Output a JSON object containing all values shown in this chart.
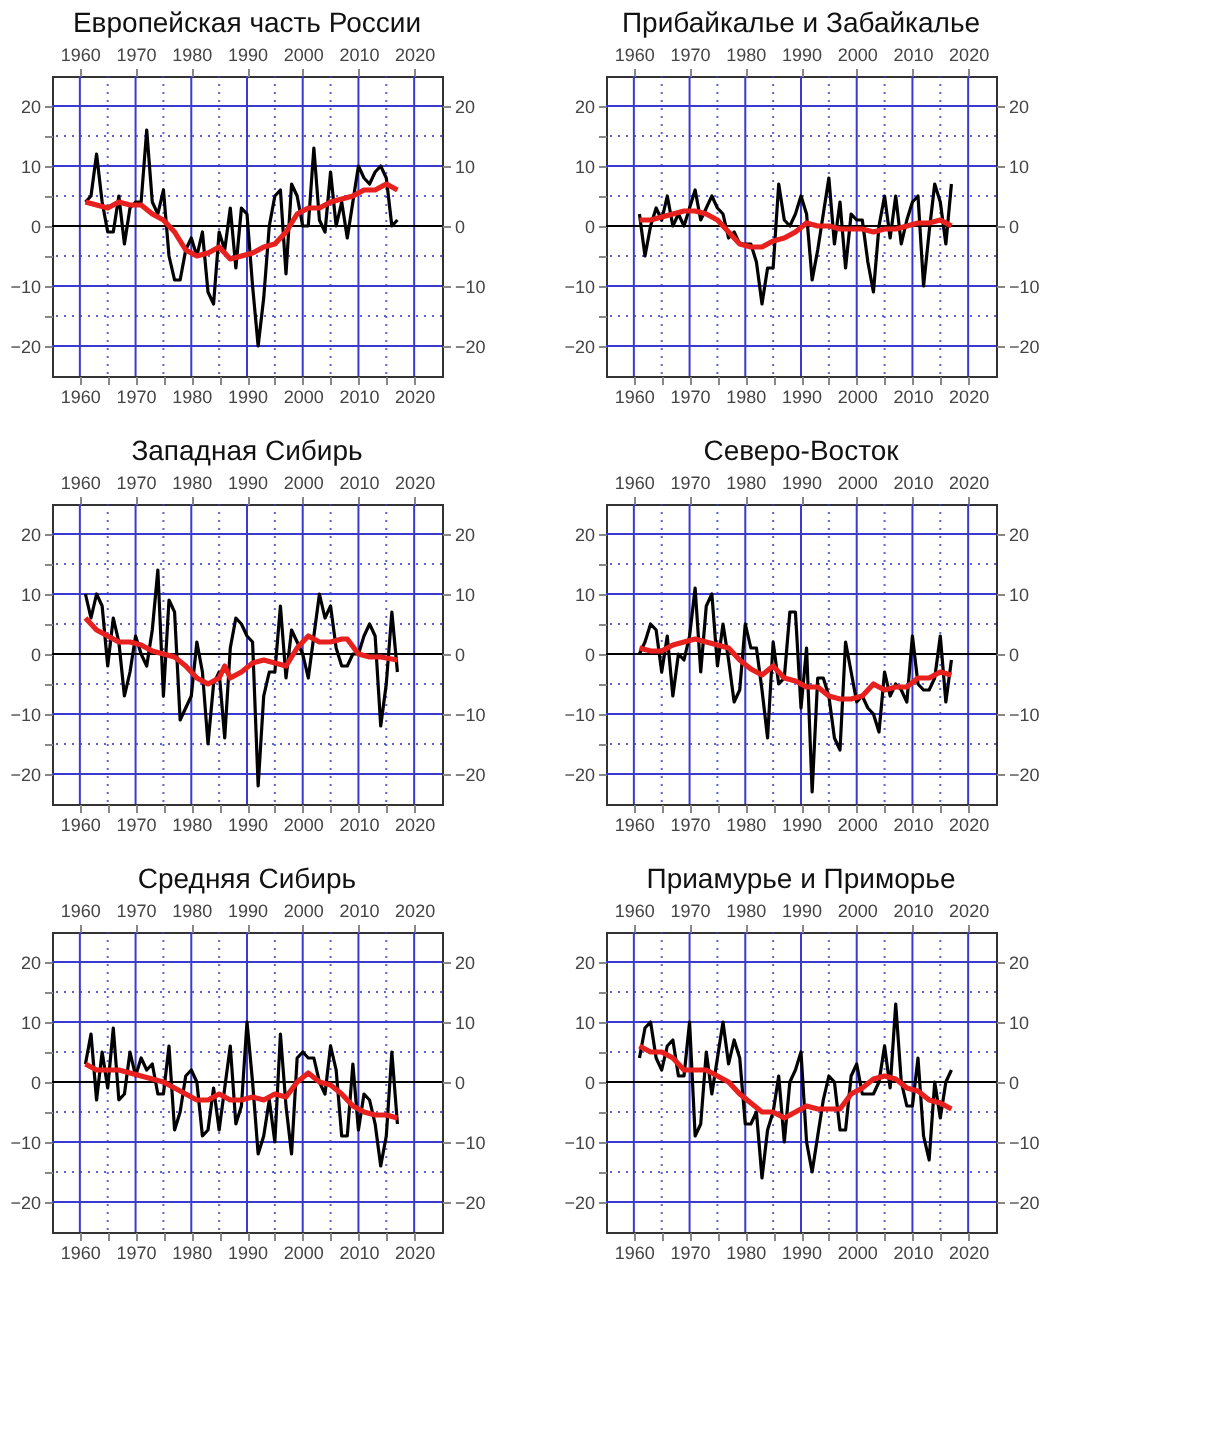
{
  "chart_data": [
    {
      "type": "line",
      "title": "Европейская часть России",
      "xlim": [
        1955,
        2025
      ],
      "xticks": [
        1960,
        {
          "value": 1965,
          "label": null
        },
        1970,
        {
          "value": 1975,
          "label": null
        },
        1980,
        {
          "value": 1985,
          "label": null
        },
        1990,
        {
          "value": 1995,
          "label": null
        },
        2000,
        {
          "value": 2005,
          "label": null
        },
        2010,
        {
          "value": 2015,
          "label": null
        },
        2020
      ],
      "x2lim": [
        1955,
        2025
      ],
      "x2ticks": [
        1960,
        1970,
        1980,
        1990,
        2000,
        2010,
        2020
      ],
      "ylim": [
        -25,
        25
      ],
      "yticks": [
        -20,
        {
          "value": -15,
          "label": null
        },
        -10,
        {
          "value": -5,
          "label": null
        },
        0,
        {
          "value": 5,
          "label": null
        },
        10,
        {
          "value": 15,
          "label": null
        },
        20
      ],
      "y2lim": [
        -25,
        25
      ],
      "y2ticks": [
        -20,
        -10,
        0,
        10,
        20
      ],
      "grid": true,
      "ref_lines": [
        {
          "axis": "y",
          "value": 0,
          "color": "#000000"
        }
      ],
      "x": [
        1961,
        1962,
        1963,
        1964,
        1965,
        1966,
        1967,
        1968,
        1969,
        1970,
        1971,
        1972,
        1973,
        1974,
        1975,
        1976,
        1977,
        1978,
        1979,
        1980,
        1981,
        1982,
        1983,
        1984,
        1985,
        1986,
        1987,
        1988,
        1989,
        1990,
        1991,
        1992,
        1993,
        1994,
        1995,
        1996,
        1997,
        1998,
        1999,
        2000,
        2001,
        2002,
        2003,
        2004,
        2005,
        2006,
        2007,
        2008,
        2009,
        2010,
        2011,
        2012,
        2013,
        2014,
        2015,
        2016,
        2017
      ],
      "series": [
        {
          "color": "#000000",
          "values": [
            4,
            5,
            12,
            4,
            -1,
            -1,
            5,
            -3,
            3,
            4,
            4,
            16,
            4,
            2,
            6,
            -5,
            -9,
            -9,
            -4,
            -2,
            -5,
            -1,
            -11,
            -13,
            -1,
            -4,
            3,
            -7,
            3,
            2,
            -10,
            -20,
            -12,
            0,
            5,
            6,
            -8,
            7,
            5,
            0,
            0,
            13,
            1,
            -1,
            9,
            0,
            4,
            -2,
            4,
            10,
            8,
            7,
            9,
            10,
            8,
            0,
            1
          ]
        },
        {
          "color": "#e8201e",
          "x": [
            1961,
            1963,
            1965,
            1967,
            1969,
            1971,
            1973,
            1975,
            1977,
            1979,
            1981,
            1983,
            1985,
            1987,
            1989,
            1991,
            1993,
            1995,
            1997,
            1999,
            2001,
            2003,
            2005,
            2007,
            2009,
            2011,
            2013,
            2015,
            2017
          ],
          "values": [
            4,
            3.5,
            3,
            4,
            3.5,
            3.5,
            2,
            1,
            -1,
            -4,
            -5,
            -4.5,
            -3.5,
            -5.5,
            -5,
            -4.5,
            -3.5,
            -3,
            -1,
            2,
            3,
            3,
            4,
            4.5,
            5,
            6,
            6,
            7,
            6
          ]
        }
      ]
    },
    {
      "type": "line",
      "title": "Прибайкалье и Забайкалье",
      "xlim": [
        1955,
        2025
      ],
      "xticks": [
        1960,
        {
          "value": 1965,
          "label": null
        },
        1970,
        {
          "value": 1975,
          "label": null
        },
        1980,
        {
          "value": 1985,
          "label": null
        },
        1990,
        {
          "value": 1995,
          "label": null
        },
        2000,
        {
          "value": 2005,
          "label": null
        },
        2010,
        {
          "value": 2015,
          "label": null
        },
        2020
      ],
      "x2lim": [
        1955,
        2025
      ],
      "x2ticks": [
        1960,
        1970,
        1980,
        1990,
        2000,
        2010,
        2020
      ],
      "ylim": [
        -25,
        25
      ],
      "yticks": [
        -20,
        {
          "value": -15,
          "label": null
        },
        -10,
        {
          "value": -5,
          "label": null
        },
        0,
        {
          "value": 5,
          "label": null
        },
        10,
        {
          "value": 15,
          "label": null
        },
        20
      ],
      "y2lim": [
        -25,
        25
      ],
      "y2ticks": [
        -20,
        -10,
        0,
        10,
        20
      ],
      "grid": true,
      "ref_lines": [
        {
          "axis": "y",
          "value": 0,
          "color": "#000000"
        }
      ],
      "x": [
        1961,
        1962,
        1963,
        1964,
        1965,
        1966,
        1967,
        1968,
        1969,
        1970,
        1971,
        1972,
        1973,
        1974,
        1975,
        1976,
        1977,
        1978,
        1979,
        1980,
        1981,
        1982,
        1983,
        1984,
        1985,
        1986,
        1987,
        1988,
        1989,
        1990,
        1991,
        1992,
        1993,
        1994,
        1995,
        1996,
        1997,
        1998,
        1999,
        2000,
        2001,
        2002,
        2003,
        2004,
        2005,
        2006,
        2007,
        2008,
        2009,
        2010,
        2011,
        2012,
        2013,
        2014,
        2015,
        2016,
        2017
      ],
      "series": [
        {
          "color": "#000000",
          "values": [
            2,
            -5,
            0,
            3,
            1,
            5,
            0,
            2,
            0,
            3,
            6,
            1,
            3,
            5,
            3,
            2,
            -2,
            -1,
            -3,
            -3,
            -3,
            -6,
            -13,
            -7,
            -7,
            7,
            1,
            0,
            2,
            5,
            2,
            -9,
            -4,
            2,
            8,
            -3,
            4,
            -7,
            2,
            1,
            1,
            -6,
            -11,
            0,
            5,
            -2,
            5,
            -3,
            1,
            4,
            5,
            -10,
            -1,
            7,
            4,
            -3,
            7
          ]
        },
        {
          "color": "#e8201e",
          "x": [
            1961,
            1963,
            1965,
            1967,
            1969,
            1971,
            1973,
            1975,
            1977,
            1979,
            1981,
            1983,
            1985,
            1987,
            1989,
            1991,
            1993,
            1995,
            1997,
            1999,
            2001,
            2003,
            2005,
            2007,
            2009,
            2011,
            2013,
            2015,
            2017
          ],
          "values": [
            1,
            1,
            1.5,
            2,
            2.5,
            2.5,
            2,
            1,
            -1,
            -3,
            -3.5,
            -3.5,
            -2.5,
            -2,
            -1,
            0.5,
            0,
            0,
            -0.5,
            -0.5,
            -0.5,
            -1,
            -0.5,
            -0.5,
            0,
            0.5,
            0.5,
            1,
            0
          ]
        }
      ]
    },
    {
      "type": "line",
      "title": "Западная Сибирь",
      "xlim": [
        1955,
        2025
      ],
      "xticks": [
        1960,
        {
          "value": 1965,
          "label": null
        },
        1970,
        {
          "value": 1975,
          "label": null
        },
        1980,
        {
          "value": 1985,
          "label": null
        },
        1990,
        {
          "value": 1995,
          "label": null
        },
        2000,
        {
          "value": 2005,
          "label": null
        },
        2010,
        {
          "value": 2015,
          "label": null
        },
        2020
      ],
      "x2lim": [
        1955,
        2025
      ],
      "x2ticks": [
        1960,
        1970,
        1980,
        1990,
        2000,
        2010,
        2020
      ],
      "ylim": [
        -25,
        25
      ],
      "yticks": [
        -20,
        {
          "value": -15,
          "label": null
        },
        -10,
        {
          "value": -5,
          "label": null
        },
        0,
        {
          "value": 5,
          "label": null
        },
        10,
        {
          "value": 15,
          "label": null
        },
        20
      ],
      "y2lim": [
        -25,
        25
      ],
      "y2ticks": [
        -20,
        -10,
        0,
        10,
        20
      ],
      "grid": true,
      "ref_lines": [
        {
          "axis": "y",
          "value": 0,
          "color": "#000000"
        }
      ],
      "x": [
        1961,
        1962,
        1963,
        1964,
        1965,
        1966,
        1967,
        1968,
        1969,
        1970,
        1971,
        1972,
        1973,
        1974,
        1975,
        1976,
        1977,
        1978,
        1979,
        1980,
        1981,
        1982,
        1983,
        1984,
        1985,
        1986,
        1987,
        1988,
        1989,
        1990,
        1991,
        1992,
        1993,
        1994,
        1995,
        1996,
        1997,
        1998,
        1999,
        2000,
        2001,
        2002,
        2003,
        2004,
        2005,
        2006,
        2007,
        2008,
        2009,
        2010,
        2011,
        2012,
        2013,
        2014,
        2015,
        2016,
        2017
      ],
      "series": [
        {
          "color": "#000000",
          "values": [
            10,
            6,
            10,
            8,
            -2,
            6,
            2,
            -7,
            -3,
            3,
            0,
            -2,
            4,
            14,
            -7,
            9,
            7,
            -11,
            -9,
            -7,
            2,
            -3,
            -15,
            -5,
            -3,
            -14,
            1,
            6,
            5,
            3,
            2,
            -22,
            -7,
            -3,
            -3,
            8,
            -4,
            4,
            2,
            0,
            -4,
            3,
            10,
            6,
            8,
            1,
            -2,
            -2,
            0,
            0,
            3,
            5,
            3,
            -12,
            -5,
            7,
            -3
          ]
        },
        {
          "color": "#e8201e",
          "x": [
            1961,
            1963,
            1965,
            1967,
            1969,
            1971,
            1973,
            1975,
            1977,
            1979,
            1981,
            1983,
            1985,
            1986,
            1987,
            1989,
            1991,
            1993,
            1995,
            1997,
            1999,
            2001,
            2003,
            2005,
            2007,
            2008,
            2010,
            2012,
            2014,
            2017
          ],
          "values": [
            6,
            4,
            3,
            2,
            2,
            1.5,
            0.5,
            0,
            -0.5,
            -2,
            -4,
            -5,
            -4,
            -2,
            -4,
            -3,
            -1.5,
            -1,
            -1.5,
            -2,
            1,
            3,
            2,
            2,
            2.5,
            2.5,
            0,
            -0.5,
            -0.5,
            -1
          ]
        }
      ]
    },
    {
      "type": "line",
      "title": "Северо-Восток",
      "xlim": [
        1955,
        2025
      ],
      "xticks": [
        1960,
        {
          "value": 1965,
          "label": null
        },
        1970,
        {
          "value": 1975,
          "label": null
        },
        1980,
        {
          "value": 1985,
          "label": null
        },
        1990,
        {
          "value": 1995,
          "label": null
        },
        2000,
        {
          "value": 2005,
          "label": null
        },
        2010,
        {
          "value": 2015,
          "label": null
        },
        2020
      ],
      "x2lim": [
        1955,
        2025
      ],
      "x2ticks": [
        1960,
        1970,
        1980,
        1990,
        2000,
        2010,
        2020
      ],
      "ylim": [
        -25,
        25
      ],
      "yticks": [
        -20,
        {
          "value": -15,
          "label": null
        },
        -10,
        {
          "value": -5,
          "label": null
        },
        0,
        {
          "value": 5,
          "label": null
        },
        10,
        {
          "value": 15,
          "label": null
        },
        20
      ],
      "y2lim": [
        -25,
        25
      ],
      "y2ticks": [
        -20,
        -10,
        0,
        10,
        20
      ],
      "grid": true,
      "ref_lines": [
        {
          "axis": "y",
          "value": 0,
          "color": "#000000"
        }
      ],
      "x": [
        1961,
        1962,
        1963,
        1964,
        1965,
        1966,
        1967,
        1968,
        1969,
        1970,
        1971,
        1972,
        1973,
        1974,
        1975,
        1976,
        1977,
        1978,
        1979,
        1980,
        1981,
        1982,
        1983,
        1984,
        1985,
        1986,
        1987,
        1988,
        1989,
        1990,
        1991,
        1992,
        1993,
        1994,
        1995,
        1996,
        1997,
        1998,
        1999,
        2000,
        2001,
        2002,
        2003,
        2004,
        2005,
        2006,
        2007,
        2008,
        2009,
        2010,
        2011,
        2012,
        2013,
        2014,
        2015,
        2016,
        2017
      ],
      "series": [
        {
          "color": "#000000",
          "values": [
            0,
            2,
            5,
            4,
            -3,
            3,
            -7,
            0,
            -1,
            3,
            11,
            -3,
            8,
            10,
            -2,
            5,
            -1,
            -8,
            -6,
            5,
            1,
            1,
            -6,
            -14,
            2,
            -5,
            -4,
            7,
            7,
            -9,
            1,
            -23,
            -4,
            -4,
            -7,
            -14,
            -16,
            2,
            -3,
            -8,
            -7,
            -9,
            -10,
            -13,
            -3,
            -7,
            -5,
            -6,
            -8,
            3,
            -5,
            -6,
            -6,
            -4,
            3,
            -8,
            -1
          ]
        },
        {
          "color": "#e8201e",
          "x": [
            1961,
            1963,
            1965,
            1967,
            1969,
            1971,
            1973,
            1975,
            1977,
            1979,
            1981,
            1983,
            1985,
            1987,
            1989,
            1991,
            1993,
            1995,
            1997,
            1999,
            2001,
            2003,
            2005,
            2007,
            2009,
            2011,
            2013,
            2015,
            2017
          ],
          "values": [
            1,
            0.5,
            0.5,
            1.5,
            2,
            2.5,
            2,
            1.5,
            1,
            -1,
            -2.5,
            -3.5,
            -2,
            -4,
            -4.5,
            -5.5,
            -5.5,
            -7,
            -7.5,
            -7.5,
            -7,
            -5,
            -6,
            -5.5,
            -5.5,
            -4,
            -4,
            -3,
            -3.5
          ]
        }
      ]
    },
    {
      "type": "line",
      "title": "Средняя Сибирь",
      "xlim": [
        1955,
        2025
      ],
      "xticks": [
        1960,
        {
          "value": 1965,
          "label": null
        },
        1970,
        {
          "value": 1975,
          "label": null
        },
        1980,
        {
          "value": 1985,
          "label": null
        },
        1990,
        {
          "value": 1995,
          "label": null
        },
        2000,
        {
          "value": 2005,
          "label": null
        },
        2010,
        {
          "value": 2015,
          "label": null
        },
        2020
      ],
      "x2lim": [
        1955,
        2025
      ],
      "x2ticks": [
        1960,
        1970,
        1980,
        1990,
        2000,
        2010,
        2020
      ],
      "ylim": [
        -25,
        25
      ],
      "yticks": [
        -20,
        {
          "value": -15,
          "label": null
        },
        -10,
        {
          "value": -5,
          "label": null
        },
        0,
        {
          "value": 5,
          "label": null
        },
        10,
        {
          "value": 15,
          "label": null
        },
        20
      ],
      "y2lim": [
        -25,
        25
      ],
      "y2ticks": [
        -20,
        -10,
        0,
        10,
        20
      ],
      "grid": true,
      "ref_lines": [
        {
          "axis": "y",
          "value": 0,
          "color": "#000000"
        }
      ],
      "x": [
        1961,
        1962,
        1963,
        1964,
        1965,
        1966,
        1967,
        1968,
        1969,
        1970,
        1971,
        1972,
        1973,
        1974,
        1975,
        1976,
        1977,
        1978,
        1979,
        1980,
        1981,
        1982,
        1983,
        1984,
        1985,
        1986,
        1987,
        1988,
        1989,
        1990,
        1991,
        1992,
        1993,
        1994,
        1995,
        1996,
        1997,
        1998,
        1999,
        2000,
        2001,
        2002,
        2003,
        2004,
        2005,
        2006,
        2007,
        2008,
        2009,
        2010,
        2011,
        2012,
        2013,
        2014,
        2015,
        2016,
        2017
      ],
      "series": [
        {
          "color": "#000000",
          "values": [
            3,
            8,
            -3,
            5,
            -1,
            9,
            -3,
            -2,
            5,
            1,
            4,
            2,
            3,
            -2,
            -2,
            6,
            -8,
            -5,
            1,
            2,
            0,
            -9,
            -8,
            -1,
            -8,
            -1,
            6,
            -7,
            -4,
            10,
            0,
            -12,
            -9,
            -3,
            -10,
            8,
            -4,
            -12,
            4,
            5,
            4,
            4,
            0,
            -2,
            6,
            2,
            -9,
            -9,
            3,
            -8,
            -2,
            -3,
            -7,
            -14,
            -9,
            5,
            -7
          ]
        },
        {
          "color": "#e8201e",
          "x": [
            1961,
            1963,
            1965,
            1967,
            1969,
            1971,
            1973,
            1975,
            1977,
            1979,
            1981,
            1983,
            1985,
            1987,
            1989,
            1991,
            1993,
            1995,
            1997,
            1999,
            2001,
            2003,
            2005,
            2007,
            2009,
            2011,
            2013,
            2015,
            2017
          ],
          "values": [
            3,
            2,
            2,
            2,
            1.5,
            1,
            0.5,
            0,
            -1,
            -2,
            -3,
            -3,
            -2,
            -3,
            -3,
            -2.5,
            -3,
            -2,
            -2.5,
            0,
            1.5,
            0,
            -0.5,
            -2,
            -4,
            -5,
            -5.5,
            -5.5,
            -6
          ]
        }
      ]
    },
    {
      "type": "line",
      "title": "Приамурье и Приморье",
      "xlim": [
        1955,
        2025
      ],
      "xticks": [
        1960,
        {
          "value": 1965,
          "label": null
        },
        1970,
        {
          "value": 1975,
          "label": null
        },
        1980,
        {
          "value": 1985,
          "label": null
        },
        1990,
        {
          "value": 1995,
          "label": null
        },
        2000,
        {
          "value": 2005,
          "label": null
        },
        2010,
        {
          "value": 2015,
          "label": null
        },
        2020
      ],
      "x2lim": [
        1955,
        2025
      ],
      "x2ticks": [
        1960,
        1970,
        1980,
        1990,
        2000,
        2010,
        2020
      ],
      "ylim": [
        -25,
        25
      ],
      "yticks": [
        -20,
        {
          "value": -15,
          "label": null
        },
        -10,
        {
          "value": -5,
          "label": null
        },
        0,
        {
          "value": 5,
          "label": null
        },
        10,
        {
          "value": 15,
          "label": null
        },
        20
      ],
      "y2lim": [
        -25,
        25
      ],
      "y2ticks": [
        -20,
        -10,
        0,
        10,
        20
      ],
      "grid": true,
      "ref_lines": [
        {
          "axis": "y",
          "value": 0,
          "color": "#000000"
        }
      ],
      "x": [
        1961,
        1962,
        1963,
        1964,
        1965,
        1966,
        1967,
        1968,
        1969,
        1970,
        1971,
        1972,
        1973,
        1974,
        1975,
        1976,
        1977,
        1978,
        1979,
        1980,
        1981,
        1982,
        1983,
        1984,
        1985,
        1986,
        1987,
        1988,
        1989,
        1990,
        1991,
        1992,
        1993,
        1994,
        1995,
        1996,
        1997,
        1998,
        1999,
        2000,
        2001,
        2002,
        2003,
        2004,
        2005,
        2006,
        2007,
        2008,
        2009,
        2010,
        2011,
        2012,
        2013,
        2014,
        2015,
        2016,
        2017
      ],
      "series": [
        {
          "color": "#000000",
          "values": [
            4,
            9,
            10,
            4,
            2,
            6,
            7,
            1,
            1,
            10,
            -9,
            -7,
            5,
            -2,
            4,
            10,
            3,
            7,
            4,
            -7,
            -7,
            -5,
            -16,
            -8,
            -5,
            1,
            -10,
            0,
            2,
            5,
            -10,
            -15,
            -9,
            -3,
            1,
            0,
            -8,
            -8,
            1,
            3,
            -2,
            -2,
            -2,
            0,
            6,
            -1,
            13,
            0,
            -4,
            -4,
            4,
            -9,
            -13,
            0,
            -6,
            0,
            2
          ]
        },
        {
          "color": "#e8201e",
          "x": [
            1961,
            1963,
            1965,
            1967,
            1969,
            1971,
            1973,
            1975,
            1977,
            1979,
            1981,
            1983,
            1985,
            1987,
            1989,
            1991,
            1993,
            1995,
            1997,
            1999,
            2001,
            2003,
            2005,
            2007,
            2009,
            2011,
            2013,
            2015,
            2017
          ],
          "values": [
            6,
            5,
            5,
            4,
            2,
            2,
            2,
            1,
            0,
            -2,
            -3.5,
            -5,
            -5,
            -6,
            -5,
            -4,
            -4.5,
            -4.5,
            -4.5,
            -2,
            -1,
            0.5,
            1,
            0.5,
            -1,
            -1.5,
            -3,
            -3.5,
            -4.5
          ]
        }
      ]
    }
  ]
}
